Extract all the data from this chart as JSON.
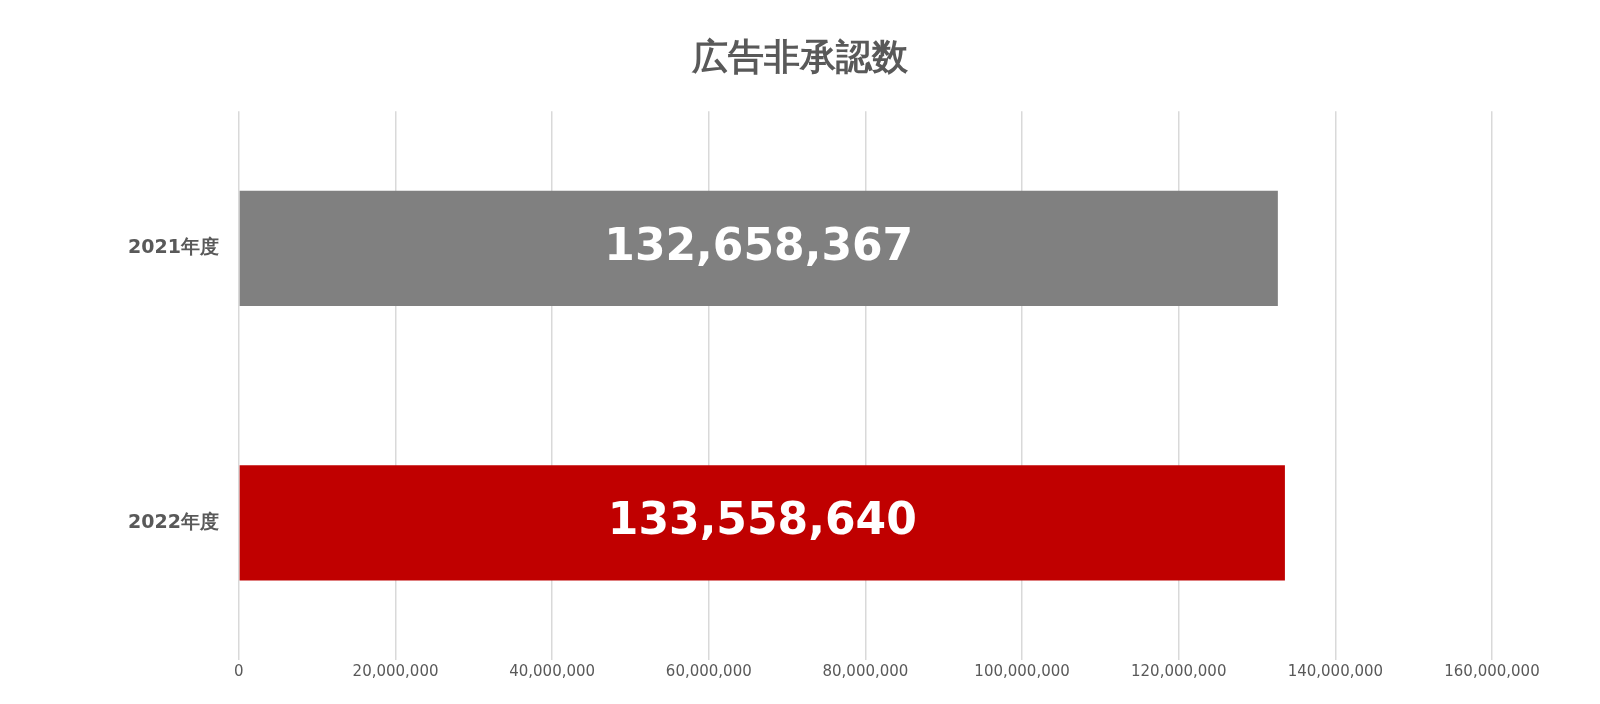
{
  "chart_data": {
    "type": "bar",
    "orientation": "horizontal",
    "title": "広告非承認数",
    "categories": [
      "2021年度",
      "2022年度"
    ],
    "values": [
      132658367,
      133558640
    ],
    "colors": [
      "#808080",
      "#c00000"
    ],
    "value_labels": [
      "132,658,367",
      "133,558,640"
    ],
    "xlim": [
      0,
      160000000
    ],
    "xticks": [
      {
        "value": 0,
        "label": "0"
      },
      {
        "value": 20000000,
        "label": "20,000,000"
      },
      {
        "value": 40000000,
        "label": "40,000,000"
      },
      {
        "value": 60000000,
        "label": "60,000,000"
      },
      {
        "value": 80000000,
        "label": "80,000,000"
      },
      {
        "value": 100000000,
        "label": "100,000,000"
      },
      {
        "value": 120000000,
        "label": "120,000,000"
      },
      {
        "value": 140000000,
        "label": "140,000,000"
      },
      {
        "value": 160000000,
        "label": "160,000,000"
      }
    ],
    "grid": "x",
    "legend": false
  }
}
